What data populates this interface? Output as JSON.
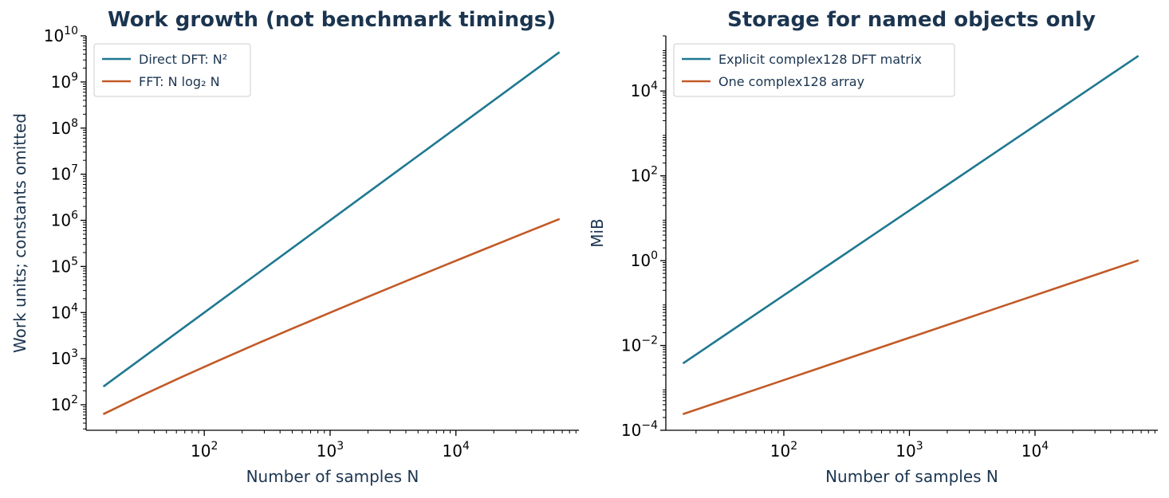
{
  "chart_data": [
    {
      "type": "line",
      "title": "Work growth (not benchmark timings)",
      "xlabel": "Number of samples N",
      "ylabel": "Work units; constants omitted",
      "xscale": "log",
      "yscale": "log",
      "xlim": [
        11.5,
        95000
      ],
      "ylim": [
        28,
        10000000000
      ],
      "xticks": [
        {
          "value": 100,
          "base": "10",
          "exp": "2"
        },
        {
          "value": 1000,
          "base": "10",
          "exp": "3"
        },
        {
          "value": 10000,
          "base": "10",
          "exp": "4"
        }
      ],
      "yticks": [
        {
          "value": 100,
          "base": "10",
          "exp": "2"
        },
        {
          "value": 1000,
          "base": "10",
          "exp": "3"
        },
        {
          "value": 10000,
          "base": "10",
          "exp": "4"
        },
        {
          "value": 100000,
          "base": "10",
          "exp": "5"
        },
        {
          "value": 1000000,
          "base": "10",
          "exp": "6"
        },
        {
          "value": 10000000,
          "base": "10",
          "exp": "7"
        },
        {
          "value": 100000000,
          "base": "10",
          "exp": "8"
        },
        {
          "value": 1000000000,
          "base": "10",
          "exp": "9"
        },
        {
          "value": 10000000000,
          "base": "10",
          "exp": "10"
        }
      ],
      "legend_position": "upper-left",
      "series": [
        {
          "name": "Direct DFT: N²",
          "color": "#1f7891",
          "x": [
            16,
            32,
            64,
            128,
            256,
            512,
            1024,
            2048,
            4096,
            8192,
            16384,
            32768,
            65536
          ],
          "y": [
            256,
            1024,
            4096,
            16384,
            65536,
            262144,
            1048576,
            4194304,
            16777216,
            67108864,
            268435456,
            1073741824,
            4294967296
          ]
        },
        {
          "name": "FFT: N log₂ N",
          "color": "#c25a27",
          "x": [
            16,
            32,
            64,
            128,
            256,
            512,
            1024,
            2048,
            4096,
            8192,
            16384,
            32768,
            65536
          ],
          "y": [
            64,
            160,
            384,
            896,
            2048,
            4608,
            10240,
            22528,
            49152,
            106496,
            229376,
            491520,
            1048576
          ]
        }
      ]
    },
    {
      "type": "line",
      "title": "Storage for named objects only",
      "xlabel": "Number of samples N",
      "ylabel": "MiB",
      "xscale": "log",
      "yscale": "log",
      "xlim": [
        11.5,
        95000
      ],
      "ylim": [
        0.0001,
        200000
      ],
      "xticks": [
        {
          "value": 100,
          "base": "10",
          "exp": "2"
        },
        {
          "value": 1000,
          "base": "10",
          "exp": "3"
        },
        {
          "value": 10000,
          "base": "10",
          "exp": "4"
        }
      ],
      "yticks": [
        {
          "value": 0.0001,
          "base": "10",
          "exp": "−4"
        },
        {
          "value": 0.01,
          "base": "10",
          "exp": "−2"
        },
        {
          "value": 1,
          "base": "10",
          "exp": "0"
        },
        {
          "value": 100,
          "base": "10",
          "exp": "2"
        },
        {
          "value": 10000,
          "base": "10",
          "exp": "4"
        }
      ],
      "legend_position": "upper-left",
      "series": [
        {
          "name": "Explicit complex128 DFT matrix",
          "color": "#1f7891",
          "x": [
            16,
            32,
            64,
            128,
            256,
            512,
            1024,
            2048,
            4096,
            8192,
            16384,
            32768,
            65536
          ],
          "y": [
            0.00390625,
            0.015625,
            0.0625,
            0.25,
            1,
            4,
            16,
            64,
            256,
            1024,
            4096,
            16384,
            65536
          ]
        },
        {
          "name": "One complex128 array",
          "color": "#c25a27",
          "x": [
            16,
            32,
            64,
            128,
            256,
            512,
            1024,
            2048,
            4096,
            8192,
            16384,
            32768,
            65536
          ],
          "y": [
            0.000244140625,
            0.00048828125,
            0.0009765625,
            0.001953125,
            0.00390625,
            0.0078125,
            0.015625,
            0.03125,
            0.0625,
            0.125,
            0.25,
            0.5,
            1
          ]
        }
      ]
    }
  ]
}
